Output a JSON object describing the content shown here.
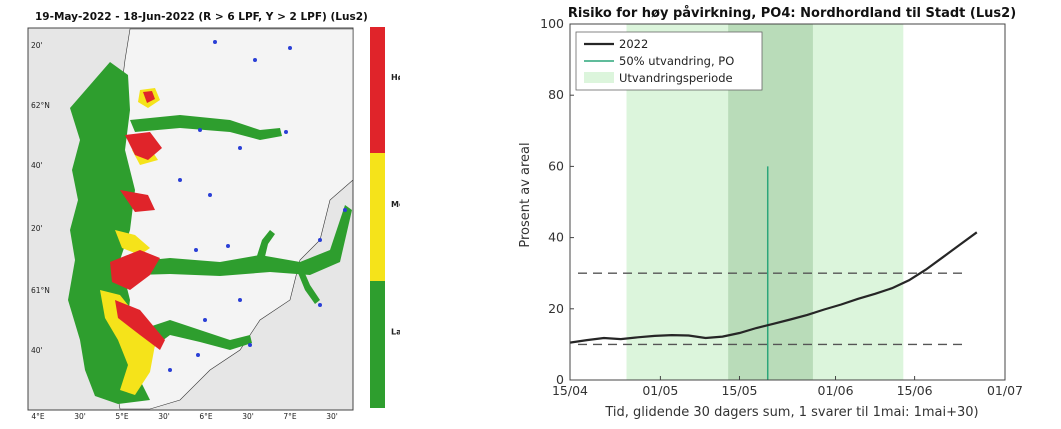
{
  "map": {
    "title": "19-May-2022  - 18-Jun-2022  (R > 6 LPF, Y > 2 LPF) (Lus2)",
    "lat_labels": [
      "20'",
      "62°N",
      "40'",
      "20'",
      "61°N",
      "40'"
    ],
    "lon_labels": [
      "4°E",
      "30'",
      "5°E",
      "30'",
      "6°E",
      "30'",
      "7°E",
      "30'"
    ],
    "legend": [
      {
        "label": "Høg",
        "color": "#e0242a"
      },
      {
        "label": "Moderat",
        "color": "#f5e31a"
      },
      {
        "label": "Lav",
        "color": "#2e9e2e"
      }
    ],
    "colors": {
      "sea": "#e6e6e6",
      "land": "#ffffff",
      "green": "#2e9e2e",
      "yellow": "#f5e31a",
      "red": "#e0242a",
      "station": "#2a3fd6"
    }
  },
  "chart_data": {
    "type": "line",
    "title": "Risiko for høy påvirkning, PO4: Nordhordland til Stadt (Lus2)",
    "xlabel": "Tid, glidende 30 dagers sum, 1 svarer til 1mai: 1mai+30)",
    "ylabel": "Prosent av areal",
    "xlim": [
      "2022-04-15",
      "2022-07-01"
    ],
    "ylim": [
      0,
      100
    ],
    "x_tick_labels": [
      "15/04",
      "01/05",
      "15/05",
      "01/06",
      "15/06",
      "01/07"
    ],
    "x_ticks": [
      "2022-04-15",
      "2022-05-01",
      "2022-05-15",
      "2022-06-01",
      "2022-06-15",
      "2022-07-01"
    ],
    "y_ticks": [
      0,
      20,
      40,
      60,
      80,
      100
    ],
    "migration_period": [
      "2022-04-25",
      "2022-06-13"
    ],
    "migration_core": [
      "2022-05-13",
      "2022-05-28"
    ],
    "migration_50pct": {
      "date": "2022-05-20",
      "y": 60
    },
    "thresholds": [
      10,
      30
    ],
    "legend": {
      "position": "top-left",
      "entries": [
        "2022",
        "50% utvandring, PO",
        "Utvandringsperiode"
      ]
    },
    "series": [
      {
        "name": "2022",
        "x": [
          "2022-04-15",
          "2022-04-18",
          "2022-04-21",
          "2022-04-24",
          "2022-04-27",
          "2022-04-30",
          "2022-05-03",
          "2022-05-06",
          "2022-05-09",
          "2022-05-12",
          "2022-05-15",
          "2022-05-18",
          "2022-05-21",
          "2022-05-24",
          "2022-05-27",
          "2022-05-30",
          "2022-06-02",
          "2022-06-05",
          "2022-06-08",
          "2022-06-11",
          "2022-06-14",
          "2022-06-17",
          "2022-06-20",
          "2022-06-23",
          "2022-06-26"
        ],
        "values": [
          10.5,
          11.2,
          11.8,
          11.5,
          12.0,
          12.4,
          12.6,
          12.5,
          11.8,
          12.2,
          13.2,
          14.6,
          15.8,
          17.0,
          18.3,
          19.8,
          21.2,
          22.8,
          24.2,
          25.8,
          28.0,
          31.0,
          34.5,
          38.0,
          41.5
        ]
      }
    ],
    "colors": {
      "line": "#262626",
      "marker_line": "#2ca67a",
      "period": "#dcf5dc",
      "core": "#b9dcb9",
      "threshold": "#555555"
    }
  }
}
